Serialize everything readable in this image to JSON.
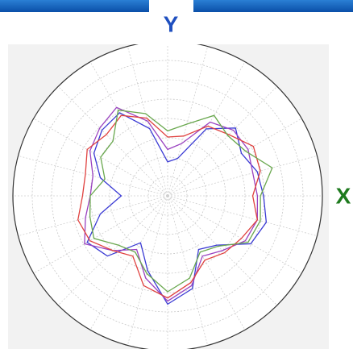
{
  "chart_data": {
    "type": "polar",
    "xlabel": "X",
    "ylabel": "Y",
    "theta": [
      0,
      15,
      30,
      45,
      60,
      75,
      90,
      105,
      120,
      135,
      150,
      165,
      180,
      195,
      210,
      225,
      240,
      255,
      270,
      285,
      300,
      315,
      330,
      345
    ],
    "series": [
      {
        "name": "blue",
        "color": "#3b3bd4",
        "values": [
          0.62,
          0.6,
          0.55,
          0.62,
          0.5,
          0.25,
          0.22,
          0.45,
          0.62,
          0.6,
          0.55,
          0.45,
          0.3,
          0.45,
          0.6,
          0.55,
          0.35,
          0.5,
          0.7,
          0.62,
          0.4,
          0.45,
          0.62,
          0.66
        ]
      },
      {
        "name": "purple",
        "color": "#9a42c0",
        "values": [
          0.58,
          0.57,
          0.6,
          0.6,
          0.55,
          0.35,
          0.3,
          0.5,
          0.66,
          0.62,
          0.58,
          0.5,
          0.5,
          0.55,
          0.62,
          0.5,
          0.4,
          0.55,
          0.68,
          0.6,
          0.45,
          0.5,
          0.58,
          0.6
        ]
      },
      {
        "name": "red",
        "color": "#e0413f",
        "values": [
          0.55,
          0.62,
          0.64,
          0.56,
          0.52,
          0.4,
          0.38,
          0.52,
          0.6,
          0.56,
          0.6,
          0.55,
          0.55,
          0.6,
          0.58,
          0.5,
          0.45,
          0.6,
          0.66,
          0.58,
          0.48,
          0.52,
          0.55,
          0.6
        ]
      },
      {
        "name": "green",
        "color": "#6aa84f",
        "values": [
          0.6,
          0.7,
          0.58,
          0.55,
          0.6,
          0.48,
          0.42,
          0.55,
          0.64,
          0.5,
          0.5,
          0.42,
          0.5,
          0.52,
          0.55,
          0.45,
          0.42,
          0.52,
          0.62,
          0.55,
          0.42,
          0.46,
          0.6,
          0.62
        ]
      }
    ],
    "rlim": [
      0,
      1
    ],
    "rticks": [
      0.125,
      0.25,
      0.375,
      0.5,
      0.625,
      0.75,
      0.875,
      1
    ],
    "thetaticks": [
      0,
      15,
      30,
      45,
      60,
      75,
      90,
      105,
      120,
      135,
      150,
      165,
      180,
      195,
      210,
      225,
      240,
      255,
      270,
      285,
      300,
      315,
      330,
      345
    ],
    "grid": true
  }
}
